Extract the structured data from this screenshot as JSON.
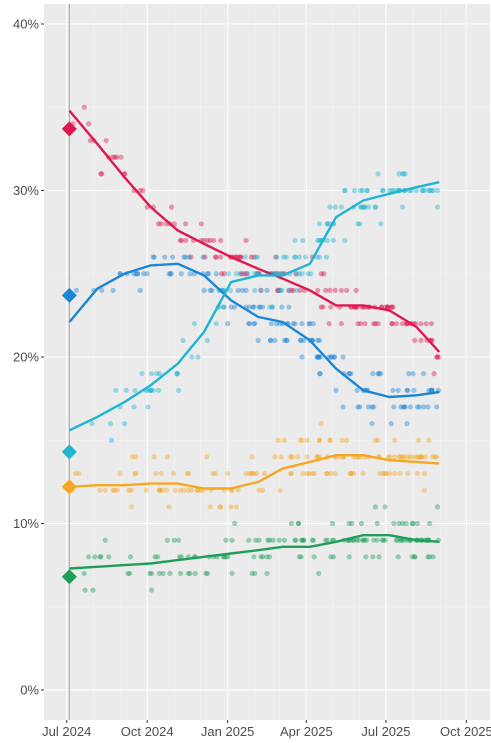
{
  "chart_data": {
    "type": "scatter",
    "title": "",
    "xlabel": "",
    "ylabel": "",
    "x_ticks": [
      "Jul 2024",
      "Oct 2024",
      "Jan 2025",
      "Apr 2025",
      "Jul 2025",
      "Oct 2025"
    ],
    "y_ticks": [
      "0%",
      "10%",
      "20%",
      "30%",
      "40%"
    ],
    "xlim": [
      "2024-06-05",
      "2025-10-28"
    ],
    "ylim": [
      -1.8,
      41.2
    ],
    "grid": true,
    "background": "#ebebeb",
    "vline_x": "2024-07-04",
    "series": [
      {
        "color": "#e0174f",
        "start_marker": {
          "x": "2024-07-04",
          "y": 33.7
        },
        "trend": [
          {
            "x": "2024-07-04",
            "y": 34.8
          },
          {
            "x": "2024-08-05",
            "y": 32.8
          },
          {
            "x": "2024-09-05",
            "y": 30.8
          },
          {
            "x": "2024-10-05",
            "y": 29.0
          },
          {
            "x": "2024-11-05",
            "y": 27.6
          },
          {
            "x": "2024-12-05",
            "y": 26.8
          },
          {
            "x": "2025-01-05",
            "y": 26.0
          },
          {
            "x": "2025-02-05",
            "y": 25.3
          },
          {
            "x": "2025-03-05",
            "y": 24.7
          },
          {
            "x": "2025-04-05",
            "y": 24.0
          },
          {
            "x": "2025-05-05",
            "y": 23.1
          },
          {
            "x": "2025-06-05",
            "y": 23.1
          },
          {
            "x": "2025-07-05",
            "y": 22.8
          },
          {
            "x": "2025-08-05",
            "y": 21.8
          },
          {
            "x": "2025-08-31",
            "y": 20.3
          }
        ]
      },
      {
        "color": "#1c86d6",
        "start_marker": {
          "x": "2024-07-04",
          "y": 23.7
        },
        "trend": [
          {
            "x": "2024-07-04",
            "y": 22.1
          },
          {
            "x": "2024-08-05",
            "y": 24.1
          },
          {
            "x": "2024-09-05",
            "y": 25.0
          },
          {
            "x": "2024-10-05",
            "y": 25.5
          },
          {
            "x": "2024-11-05",
            "y": 25.6
          },
          {
            "x": "2024-12-05",
            "y": 24.9
          },
          {
            "x": "2025-01-05",
            "y": 23.4
          },
          {
            "x": "2025-02-05",
            "y": 22.4
          },
          {
            "x": "2025-03-05",
            "y": 22.1
          },
          {
            "x": "2025-04-05",
            "y": 21.0
          },
          {
            "x": "2025-05-05",
            "y": 19.3
          },
          {
            "x": "2025-06-05",
            "y": 18.0
          },
          {
            "x": "2025-07-05",
            "y": 17.6
          },
          {
            "x": "2025-08-05",
            "y": 17.7
          },
          {
            "x": "2025-08-31",
            "y": 17.9
          }
        ]
      },
      {
        "color": "#1fb5d3",
        "start_marker": {
          "x": "2024-07-04",
          "y": 14.3
        },
        "trend": [
          {
            "x": "2024-07-04",
            "y": 15.6
          },
          {
            "x": "2024-08-05",
            "y": 16.4
          },
          {
            "x": "2024-09-05",
            "y": 17.3
          },
          {
            "x": "2024-10-05",
            "y": 18.3
          },
          {
            "x": "2024-11-05",
            "y": 19.6
          },
          {
            "x": "2024-12-05",
            "y": 21.5
          },
          {
            "x": "2025-01-05",
            "y": 24.5
          },
          {
            "x": "2025-02-05",
            "y": 24.9
          },
          {
            "x": "2025-03-05",
            "y": 24.9
          },
          {
            "x": "2025-04-05",
            "y": 25.6
          },
          {
            "x": "2025-05-05",
            "y": 28.4
          },
          {
            "x": "2025-06-05",
            "y": 29.4
          },
          {
            "x": "2025-07-05",
            "y": 29.8
          },
          {
            "x": "2025-08-05",
            "y": 30.2
          },
          {
            "x": "2025-08-31",
            "y": 30.5
          }
        ]
      },
      {
        "color": "#f5a623",
        "start_marker": {
          "x": "2024-07-04",
          "y": 12.2
        },
        "trend": [
          {
            "x": "2024-07-04",
            "y": 12.2
          },
          {
            "x": "2024-08-05",
            "y": 12.3
          },
          {
            "x": "2024-09-05",
            "y": 12.3
          },
          {
            "x": "2024-10-05",
            "y": 12.4
          },
          {
            "x": "2024-11-05",
            "y": 12.4
          },
          {
            "x": "2024-12-05",
            "y": 12.1
          },
          {
            "x": "2025-01-05",
            "y": 12.1
          },
          {
            "x": "2025-02-05",
            "y": 12.5
          },
          {
            "x": "2025-03-05",
            "y": 13.3
          },
          {
            "x": "2025-04-05",
            "y": 13.7
          },
          {
            "x": "2025-05-05",
            "y": 14.1
          },
          {
            "x": "2025-06-05",
            "y": 14.1
          },
          {
            "x": "2025-07-05",
            "y": 13.8
          },
          {
            "x": "2025-08-05",
            "y": 13.7
          },
          {
            "x": "2025-08-31",
            "y": 13.6
          }
        ]
      },
      {
        "color": "#1f9e5a",
        "start_marker": {
          "x": "2024-07-04",
          "y": 6.8
        },
        "trend": [
          {
            "x": "2024-07-04",
            "y": 7.3
          },
          {
            "x": "2024-08-05",
            "y": 7.4
          },
          {
            "x": "2024-09-05",
            "y": 7.5
          },
          {
            "x": "2024-10-05",
            "y": 7.6
          },
          {
            "x": "2024-11-05",
            "y": 7.8
          },
          {
            "x": "2024-12-05",
            "y": 8.0
          },
          {
            "x": "2025-01-05",
            "y": 8.2
          },
          {
            "x": "2025-02-05",
            "y": 8.4
          },
          {
            "x": "2025-03-05",
            "y": 8.6
          },
          {
            "x": "2025-04-05",
            "y": 8.6
          },
          {
            "x": "2025-05-05",
            "y": 8.9
          },
          {
            "x": "2025-06-05",
            "y": 9.3
          },
          {
            "x": "2025-07-05",
            "y": 9.3
          },
          {
            "x": "2025-08-05",
            "y": 9.0
          },
          {
            "x": "2025-08-31",
            "y": 8.9
          }
        ]
      }
    ]
  }
}
